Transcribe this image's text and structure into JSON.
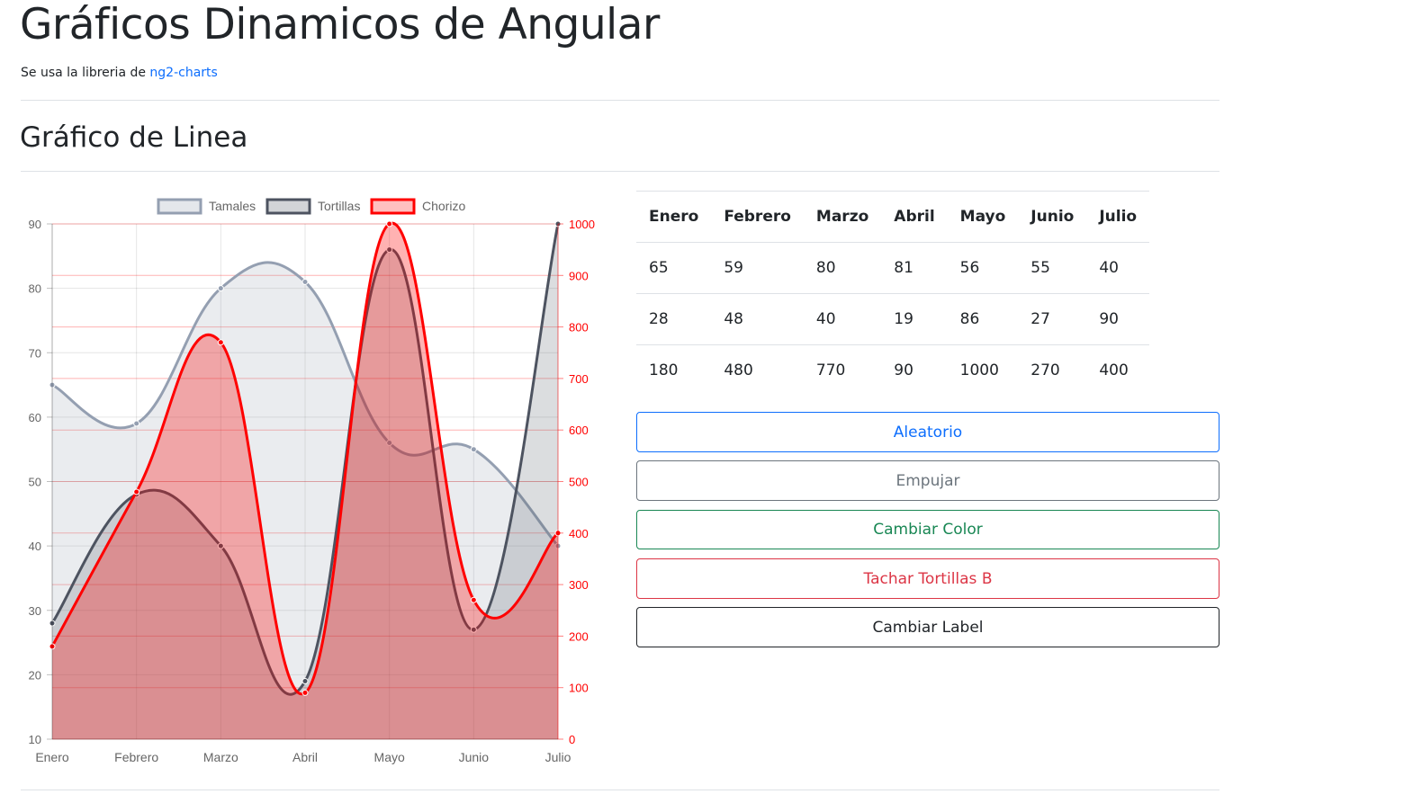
{
  "page": {
    "title": "Gráficos Dinamicos de Angular",
    "subtitle_prefix": "Se usa la libreria de ",
    "subtitle_link": "ng2-charts",
    "section_title": "Gráfico de Linea"
  },
  "table": {
    "headers": [
      "Enero",
      "Febrero",
      "Marzo",
      "Abril",
      "Mayo",
      "Junio",
      "Julio"
    ],
    "rows": [
      [
        "65",
        "59",
        "80",
        "81",
        "56",
        "55",
        "40"
      ],
      [
        "28",
        "48",
        "40",
        "19",
        "86",
        "27",
        "90"
      ],
      [
        "180",
        "480",
        "770",
        "90",
        "1000",
        "270",
        "400"
      ]
    ]
  },
  "buttons": {
    "random": "Aleatorio",
    "push": "Empujar",
    "change_color": "Cambiar Color",
    "hide_tortillas": "Tachar Tortillas B",
    "change_label": "Cambiar Label"
  },
  "colors": {
    "primary": "#0d6efd",
    "secondary": "#6c757d",
    "success": "#198754",
    "danger": "#dc3545",
    "dark": "#212529"
  },
  "chart_data": {
    "type": "line",
    "categories": [
      "Enero",
      "Febrero",
      "Marzo",
      "Abril",
      "Mayo",
      "Junio",
      "Julio"
    ],
    "series": [
      {
        "name": "Tamales",
        "values": [
          65,
          59,
          80,
          81,
          56,
          55,
          40
        ],
        "axis": "left",
        "stroke": "#949fb1",
        "fill": "rgba(148,159,177,0.2)"
      },
      {
        "name": "Tortillas",
        "values": [
          28,
          48,
          40,
          19,
          86,
          27,
          90
        ],
        "axis": "left",
        "stroke": "#4d5360",
        "fill": "rgba(77,83,96,0.2)"
      },
      {
        "name": "Chorizo",
        "values": [
          180,
          480,
          770,
          90,
          1000,
          270,
          400
        ],
        "axis": "right",
        "stroke": "#ff0000",
        "fill": "rgba(255,0,0,0.3)"
      }
    ],
    "y_left": {
      "range": [
        10,
        90
      ],
      "ticks": [
        "10",
        "20",
        "30",
        "40",
        "50",
        "60",
        "70",
        "80",
        "90"
      ]
    },
    "y_right": {
      "range": [
        0,
        1000
      ],
      "ticks": [
        "0",
        "100",
        "200",
        "300",
        "400",
        "500",
        "600",
        "700",
        "800",
        "900",
        "1000"
      ],
      "color": "#ff0000"
    },
    "legend_position": "top",
    "grid": true
  }
}
